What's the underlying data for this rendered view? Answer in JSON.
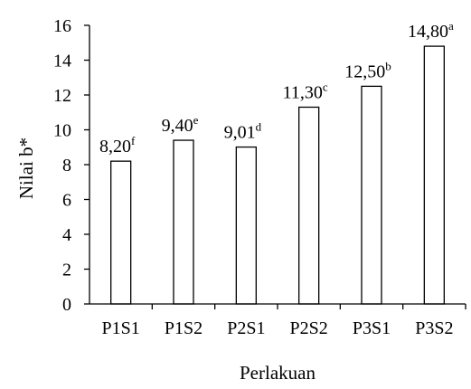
{
  "chart_data": {
    "type": "bar",
    "title": "",
    "xlabel": "Perlakuan",
    "ylabel": "Nilai b*",
    "ylim": [
      0,
      16
    ],
    "yticks": [
      "0",
      "2",
      "4",
      "6",
      "8",
      "10",
      "12",
      "14",
      "16"
    ],
    "categories": [
      "P1S1",
      "P1S2",
      "P2S1",
      "P2S2",
      "P3S1",
      "P3S2"
    ],
    "values": [
      8.2,
      9.4,
      9.01,
      11.3,
      12.5,
      14.8
    ],
    "data_labels": [
      "8,20",
      "9,40",
      "9,01",
      "11,30",
      "12,50",
      "14,80"
    ],
    "significance_letters": [
      "f",
      "e",
      "d",
      "c",
      "b",
      "a"
    ],
    "grid": false,
    "legend": "none",
    "colors": {
      "bar_fill": "#ffffff",
      "bar_stroke": "#000000",
      "axis": "#000000"
    }
  }
}
